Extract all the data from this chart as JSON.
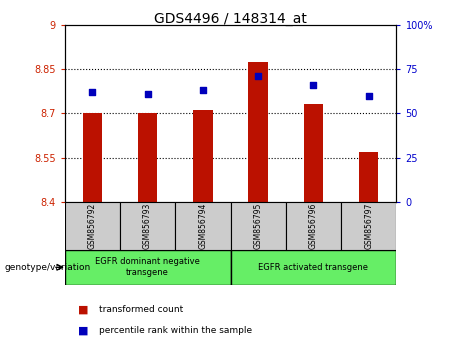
{
  "title": "GDS4496 / 148314_at",
  "samples": [
    "GSM856792",
    "GSM856793",
    "GSM856794",
    "GSM856795",
    "GSM856796",
    "GSM856797"
  ],
  "bar_values": [
    8.7,
    8.7,
    8.71,
    8.875,
    8.73,
    8.57
  ],
  "bar_base": 8.4,
  "percentile_values": [
    62,
    61,
    63,
    71,
    66,
    60
  ],
  "bar_color": "#bb1100",
  "dot_color": "#0000bb",
  "ylim_left": [
    8.4,
    9.0
  ],
  "ylim_right": [
    0,
    100
  ],
  "yticks_left": [
    8.4,
    8.55,
    8.7,
    8.85,
    9.0
  ],
  "ytick_labels_left": [
    "8.4",
    "8.55",
    "8.7",
    "8.85",
    "9"
  ],
  "yticks_right": [
    0,
    25,
    50,
    75,
    100
  ],
  "ytick_labels_right": [
    "0",
    "25",
    "50",
    "75",
    "100%"
  ],
  "grid_values": [
    8.55,
    8.7,
    8.85
  ],
  "genotype_label": "genotype/variation",
  "group1_label": "EGFR dominant negative\ntransgene",
  "group2_label": "EGFR activated transgene",
  "group_color": "#66ee66",
  "sample_box_color": "#cccccc",
  "legend_items": [
    {
      "color": "#bb1100",
      "label": "transformed count"
    },
    {
      "color": "#0000bb",
      "label": "percentile rank within the sample"
    }
  ],
  "bar_width": 0.35,
  "left_axis_color": "#cc2200",
  "right_axis_color": "#0000cc"
}
